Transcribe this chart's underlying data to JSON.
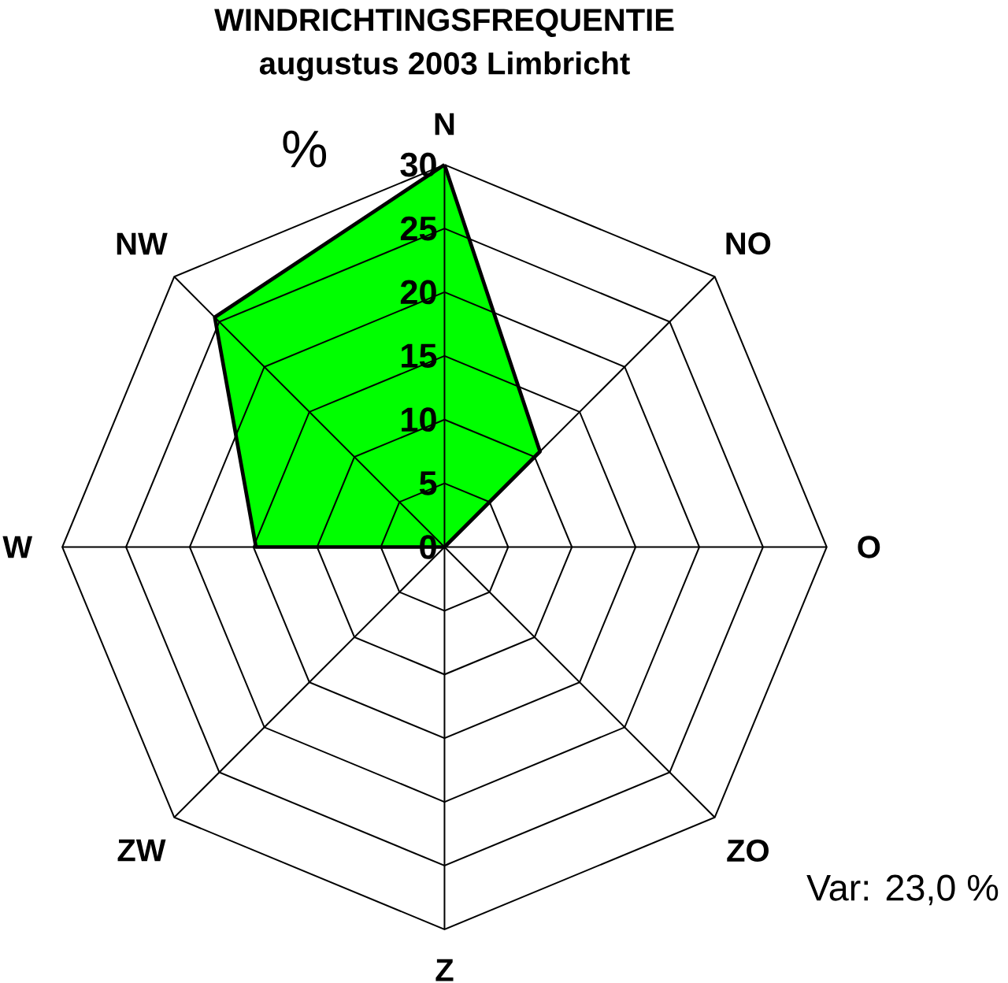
{
  "chart_data": {
    "type": "radar",
    "title": "WINDRICHTINGSFREQUENTIE",
    "subtitle": "augustus 2003  Limbricht",
    "ylabel": "%",
    "categories": [
      "N",
      "NO",
      "O",
      "ZO",
      "Z",
      "ZW",
      "W",
      "NW"
    ],
    "series": [
      {
        "color": "#00ff00",
        "values": [
          30,
          10.6,
          0,
          0,
          0,
          0,
          14.8,
          25.5
        ]
      }
    ],
    "ylim": [
      0,
      30
    ],
    "yticks": [
      0,
      5,
      10,
      15,
      20,
      25,
      30
    ],
    "annotations": [
      "Var: 23,0 %"
    ]
  }
}
